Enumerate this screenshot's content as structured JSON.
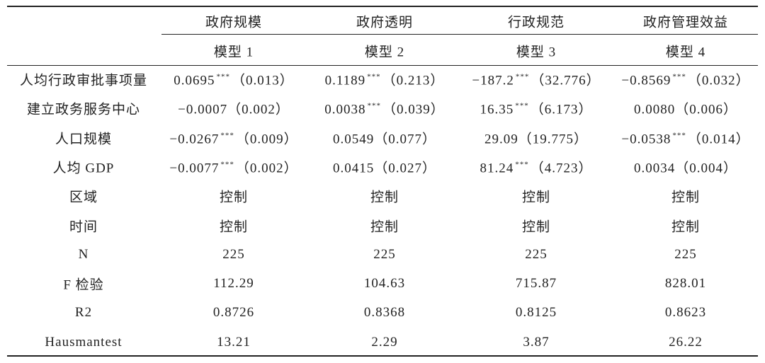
{
  "table": {
    "groups": [
      "政府规模",
      "政府透明",
      "行政规范",
      "政府管理效益"
    ],
    "models": [
      "模型 1",
      "模型 2",
      "模型 3",
      "模型 4"
    ],
    "rows": [
      {
        "label": "人均行政审批事项量",
        "cells": [
          {
            "coef": "0.0695",
            "stars": "***",
            "se": "（0.013）"
          },
          {
            "coef": "0.1189",
            "stars": "***",
            "se": "（0.213）"
          },
          {
            "coef": "−187.2",
            "stars": "***",
            "se": "（32.776）"
          },
          {
            "coef": "−0.8569",
            "stars": "***",
            "se": "（0.032）"
          }
        ]
      },
      {
        "label": "建立政务服务中心",
        "cells": [
          {
            "coef": "−0.0007",
            "se": "（0.002）"
          },
          {
            "coef": "0.0038",
            "stars": "***",
            "se": "（0.039）"
          },
          {
            "coef": "16.35",
            "stars": "***",
            "se": "（6.173）"
          },
          {
            "coef": "0.0080",
            "se": "（0.006）"
          }
        ]
      },
      {
        "label": "人口规模",
        "cells": [
          {
            "coef": "−0.0267",
            "stars": "***",
            "se": "（0.009）"
          },
          {
            "coef": "0.0549",
            "se": "（0.077）"
          },
          {
            "coef": "29.09",
            "se": "（19.775）"
          },
          {
            "coef": "−0.0538",
            "stars": "***",
            "se": "（0.014）"
          }
        ]
      },
      {
        "label": "人均 GDP",
        "cells": [
          {
            "coef": "−0.0077",
            "stars": "***",
            "se": "（0.002）"
          },
          {
            "coef": "0.0415",
            "se": "（0.027）"
          },
          {
            "coef": "81.24",
            "stars": "***",
            "se": "（4.723）"
          },
          {
            "coef": "0.0034",
            "se": "（0.004）"
          }
        ]
      },
      {
        "label": "区域",
        "cells": [
          "控制",
          "控制",
          "控制",
          "控制"
        ]
      },
      {
        "label": "时间",
        "cells": [
          "控制",
          "控制",
          "控制",
          "控制"
        ]
      },
      {
        "label": "N",
        "cells": [
          "225",
          "225",
          "225",
          "225"
        ]
      },
      {
        "label": "F 检验",
        "cells": [
          "112.29",
          "104.63",
          "715.87",
          "828.01"
        ]
      },
      {
        "label": "R2",
        "cells": [
          "0.8726",
          "0.8368",
          "0.8125",
          "0.8623"
        ]
      },
      {
        "label": "Hausmantest",
        "cells": [
          "13.21",
          "2.29",
          "3.87",
          "26.22"
        ]
      }
    ]
  }
}
